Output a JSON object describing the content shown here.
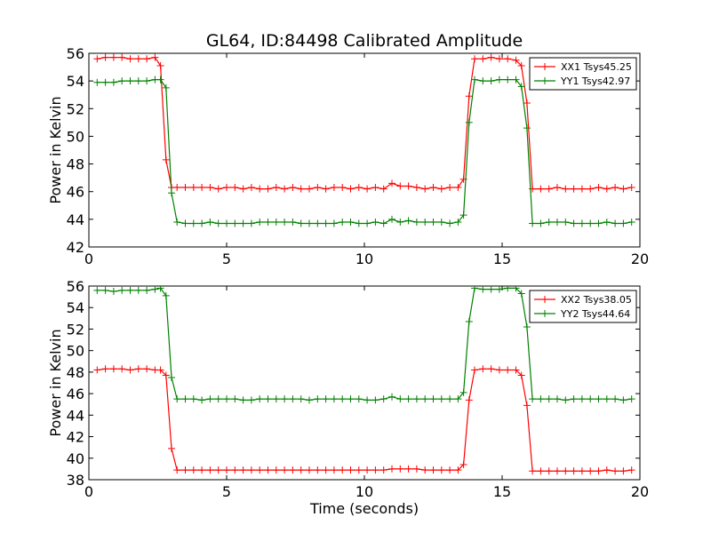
{
  "title": "GL64, ID:84498 Calibrated Amplitude",
  "xlabel": "Time (seconds)",
  "chart_data": [
    {
      "type": "line",
      "ylabel": "Power in Kelvin",
      "xlim": [
        0,
        20
      ],
      "ylim": [
        42,
        56
      ],
      "xticks": [
        0,
        5,
        10,
        15,
        20
      ],
      "yticks": [
        42,
        44,
        46,
        48,
        50,
        52,
        54,
        56
      ],
      "legend_position": "top-right",
      "series": [
        {
          "name": "XX1 Tsys45.25",
          "color": "#ff0000",
          "x": [
            0.3,
            0.6,
            0.9,
            1.2,
            1.5,
            1.8,
            2.1,
            2.4,
            2.6,
            2.8,
            3.0,
            3.2,
            3.5,
            3.8,
            4.1,
            4.4,
            4.7,
            5.0,
            5.3,
            5.6,
            5.9,
            6.2,
            6.5,
            6.8,
            7.1,
            7.4,
            7.7,
            8.0,
            8.3,
            8.6,
            8.9,
            9.2,
            9.5,
            9.8,
            10.1,
            10.4,
            10.7,
            11.0,
            11.3,
            11.6,
            11.9,
            12.2,
            12.5,
            12.8,
            13.1,
            13.4,
            13.6,
            13.8,
            14.0,
            14.3,
            14.6,
            14.9,
            15.2,
            15.5,
            15.7,
            15.9,
            16.1,
            16.4,
            16.7,
            17.0,
            17.3,
            17.6,
            17.9,
            18.2,
            18.5,
            18.8,
            19.1,
            19.4,
            19.7
          ],
          "y": [
            55.6,
            55.7,
            55.7,
            55.7,
            55.6,
            55.6,
            55.6,
            55.7,
            55.1,
            48.3,
            46.3,
            46.3,
            46.3,
            46.3,
            46.3,
            46.3,
            46.2,
            46.3,
            46.3,
            46.2,
            46.3,
            46.2,
            46.2,
            46.3,
            46.2,
            46.3,
            46.2,
            46.2,
            46.3,
            46.2,
            46.3,
            46.3,
            46.2,
            46.3,
            46.2,
            46.3,
            46.2,
            46.6,
            46.4,
            46.4,
            46.3,
            46.2,
            46.3,
            46.2,
            46.3,
            46.3,
            46.9,
            52.9,
            55.6,
            55.6,
            55.7,
            55.6,
            55.6,
            55.5,
            55.1,
            52.4,
            46.2,
            46.2,
            46.2,
            46.3,
            46.2,
            46.2,
            46.2,
            46.2,
            46.3,
            46.2,
            46.3,
            46.2,
            46.3
          ]
        },
        {
          "name": "YY1 Tsys42.97",
          "color": "#008000",
          "x": [
            0.3,
            0.6,
            0.9,
            1.2,
            1.5,
            1.8,
            2.1,
            2.4,
            2.6,
            2.8,
            3.0,
            3.2,
            3.5,
            3.8,
            4.1,
            4.4,
            4.7,
            5.0,
            5.3,
            5.6,
            5.9,
            6.2,
            6.5,
            6.8,
            7.1,
            7.4,
            7.7,
            8.0,
            8.3,
            8.6,
            8.9,
            9.2,
            9.5,
            9.8,
            10.1,
            10.4,
            10.7,
            11.0,
            11.3,
            11.6,
            11.9,
            12.2,
            12.5,
            12.8,
            13.1,
            13.4,
            13.6,
            13.8,
            14.0,
            14.3,
            14.6,
            14.9,
            15.2,
            15.5,
            15.7,
            15.9,
            16.1,
            16.4,
            16.7,
            17.0,
            17.3,
            17.6,
            17.9,
            18.2,
            18.5,
            18.8,
            19.1,
            19.4,
            19.7
          ],
          "y": [
            53.9,
            53.9,
            53.9,
            54.0,
            54.0,
            54.0,
            54.0,
            54.1,
            54.1,
            53.5,
            45.9,
            43.8,
            43.7,
            43.7,
            43.7,
            43.8,
            43.7,
            43.7,
            43.7,
            43.7,
            43.7,
            43.8,
            43.8,
            43.8,
            43.8,
            43.8,
            43.7,
            43.7,
            43.7,
            43.7,
            43.7,
            43.8,
            43.8,
            43.7,
            43.7,
            43.8,
            43.7,
            44.0,
            43.8,
            43.9,
            43.8,
            43.8,
            43.8,
            43.8,
            43.7,
            43.8,
            44.3,
            51.0,
            54.1,
            54.0,
            54.0,
            54.1,
            54.1,
            54.1,
            53.6,
            50.6,
            43.7,
            43.7,
            43.8,
            43.8,
            43.8,
            43.7,
            43.7,
            43.7,
            43.7,
            43.8,
            43.7,
            43.7,
            43.8
          ]
        }
      ]
    },
    {
      "type": "line",
      "ylabel": "Power in Kelvin",
      "xlim": [
        0,
        20
      ],
      "ylim": [
        38,
        56
      ],
      "xticks": [
        0,
        5,
        10,
        15,
        20
      ],
      "yticks": [
        38,
        40,
        42,
        44,
        46,
        48,
        50,
        52,
        54,
        56
      ],
      "legend_position": "top-right",
      "series": [
        {
          "name": "XX2 Tsys38.05",
          "color": "#ff0000",
          "x": [
            0.3,
            0.6,
            0.9,
            1.2,
            1.5,
            1.8,
            2.1,
            2.4,
            2.6,
            2.8,
            3.0,
            3.2,
            3.5,
            3.8,
            4.1,
            4.4,
            4.7,
            5.0,
            5.3,
            5.6,
            5.9,
            6.2,
            6.5,
            6.8,
            7.1,
            7.4,
            7.7,
            8.0,
            8.3,
            8.6,
            8.9,
            9.2,
            9.5,
            9.8,
            10.1,
            10.4,
            10.7,
            11.0,
            11.3,
            11.6,
            11.9,
            12.2,
            12.5,
            12.8,
            13.1,
            13.4,
            13.6,
            13.8,
            14.0,
            14.3,
            14.6,
            14.9,
            15.2,
            15.5,
            15.7,
            15.9,
            16.1,
            16.4,
            16.7,
            17.0,
            17.3,
            17.6,
            17.9,
            18.2,
            18.5,
            18.8,
            19.1,
            19.4,
            19.7
          ],
          "y": [
            48.2,
            48.3,
            48.3,
            48.3,
            48.2,
            48.3,
            48.3,
            48.2,
            48.2,
            47.7,
            40.9,
            38.9,
            38.9,
            38.9,
            38.9,
            38.9,
            38.9,
            38.9,
            38.9,
            38.9,
            38.9,
            38.9,
            38.9,
            38.9,
            38.9,
            38.9,
            38.9,
            38.9,
            38.9,
            38.9,
            38.9,
            38.9,
            38.9,
            38.9,
            38.9,
            38.9,
            38.9,
            39.0,
            39.0,
            39.0,
            39.0,
            38.9,
            38.9,
            38.9,
            38.9,
            38.9,
            39.4,
            45.4,
            48.2,
            48.3,
            48.3,
            48.2,
            48.2,
            48.2,
            47.7,
            44.9,
            38.8,
            38.8,
            38.8,
            38.8,
            38.8,
            38.8,
            38.8,
            38.8,
            38.8,
            38.9,
            38.8,
            38.8,
            38.9
          ]
        },
        {
          "name": "YY2 Tsys44.64",
          "color": "#008000",
          "x": [
            0.3,
            0.6,
            0.9,
            1.2,
            1.5,
            1.8,
            2.1,
            2.4,
            2.6,
            2.8,
            3.0,
            3.2,
            3.5,
            3.8,
            4.1,
            4.4,
            4.7,
            5.0,
            5.3,
            5.6,
            5.9,
            6.2,
            6.5,
            6.8,
            7.1,
            7.4,
            7.7,
            8.0,
            8.3,
            8.6,
            8.9,
            9.2,
            9.5,
            9.8,
            10.1,
            10.4,
            10.7,
            11.0,
            11.3,
            11.6,
            11.9,
            12.2,
            12.5,
            12.8,
            13.1,
            13.4,
            13.6,
            13.8,
            14.0,
            14.3,
            14.6,
            14.9,
            15.2,
            15.5,
            15.7,
            15.9,
            16.1,
            16.4,
            16.7,
            17.0,
            17.3,
            17.6,
            17.9,
            18.2,
            18.5,
            18.8,
            19.1,
            19.4,
            19.7
          ],
          "y": [
            55.6,
            55.6,
            55.5,
            55.6,
            55.6,
            55.6,
            55.6,
            55.7,
            55.8,
            55.1,
            47.5,
            45.5,
            45.5,
            45.5,
            45.4,
            45.5,
            45.5,
            45.5,
            45.5,
            45.4,
            45.4,
            45.5,
            45.5,
            45.5,
            45.5,
            45.5,
            45.5,
            45.4,
            45.5,
            45.5,
            45.5,
            45.5,
            45.5,
            45.5,
            45.4,
            45.4,
            45.5,
            45.7,
            45.5,
            45.5,
            45.5,
            45.5,
            45.5,
            45.5,
            45.5,
            45.5,
            46.1,
            52.7,
            55.8,
            55.7,
            55.7,
            55.7,
            55.8,
            55.8,
            55.3,
            52.2,
            45.5,
            45.5,
            45.5,
            45.5,
            45.4,
            45.5,
            45.5,
            45.5,
            45.5,
            45.5,
            45.5,
            45.4,
            45.5
          ]
        }
      ]
    }
  ]
}
